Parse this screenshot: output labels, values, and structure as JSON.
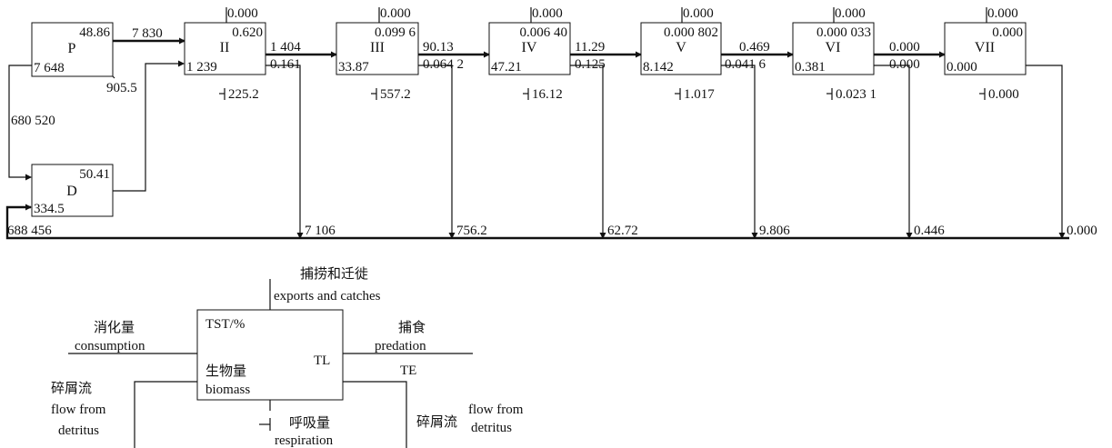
{
  "nodes": {
    "P": {
      "label": "P",
      "top_right": "48.86",
      "bottom_left": "7 648"
    },
    "D": {
      "label": "D",
      "top_right": "50.41",
      "bottom_left": "334.5"
    },
    "II": {
      "label": "II",
      "top": "0.000",
      "top_right": "0.620",
      "bottom_left": "1 239",
      "respiration": "225.2"
    },
    "III": {
      "label": "III",
      "top": "0.000",
      "top_right": "0.099 6",
      "bottom_left": "33.87",
      "respiration": "557.2"
    },
    "IV": {
      "label": "IV",
      "top": "0.000",
      "top_right": "0.006 40",
      "bottom_left": "47.21",
      "respiration": "16.12"
    },
    "V": {
      "label": "V",
      "top": "0.000",
      "top_right": "0.000 802",
      "bottom_left": "8.142",
      "respiration": "1.017"
    },
    "VI": {
      "label": "VI",
      "top": "0.000",
      "top_right": "0.000 033",
      "bottom_left": "0.381",
      "respiration": "0.023 1"
    },
    "VII": {
      "label": "VII",
      "top": "0.000",
      "top_right": "0.000",
      "bottom_left": "0.000",
      "respiration": "0.000"
    }
  },
  "flows": {
    "p_to_ii": "7 830",
    "p_out": "905.5",
    "p_to_d": "680 520",
    "d_total": "688 456",
    "ii_to_iii": "1 404",
    "ii_te": "0.161",
    "iii_to_iv": "90.13",
    "iii_te": "0.064 2",
    "iv_to_v": "11.29",
    "iv_te": "0.125",
    "v_to_vi": "0.469",
    "v_te": "0.041 6",
    "vi_to_vii": "0.000",
    "vi_te": "0.000"
  },
  "detritus_flows": [
    "7 106",
    "756.2",
    "62.72",
    "9.806",
    "0.446",
    "0.000"
  ],
  "legend": {
    "box_top_left": "TST/%",
    "box_right": "TL",
    "box_biomass_cn": "生物量",
    "box_biomass_en": "biomass",
    "exports_cn": "捕捞和迁徙",
    "exports_en": "exports and catches",
    "consumption_cn": "消化量",
    "consumption_en": "consumption",
    "predation_cn": "捕食",
    "predation_en": "predation",
    "te": "TE",
    "detritus_left_cn": "碎屑流",
    "detritus_left_en1": "flow from",
    "detritus_left_en2": "detritus",
    "respiration_cn": "呼吸量",
    "respiration_en": "respiration",
    "detritus_right_cn": "碎屑流",
    "detritus_right_en1": "flow from",
    "detritus_right_en2": "detritus"
  }
}
